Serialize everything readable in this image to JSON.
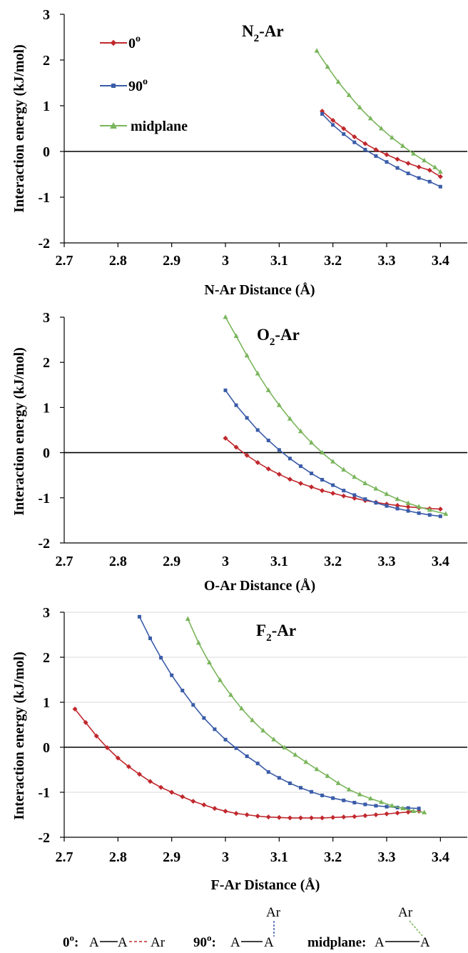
{
  "chart_data": [
    {
      "type": "line",
      "title": "N2-Ar",
      "title_main": "N",
      "title_sub": "2",
      "title_rest": "-Ar",
      "xlabel": "N-Ar Distance (Å)",
      "ylabel": "Interaction energy (kJ/mol)",
      "xlim": [
        2.7,
        3.45
      ],
      "ylim": [
        -2,
        3
      ],
      "xticks": [
        "2.7",
        "2.8",
        "2.9",
        "3",
        "3.1",
        "3.2",
        "3.3",
        "3.4"
      ],
      "yticks": [
        "-2",
        "-1",
        "0",
        "1",
        "2",
        "3"
      ],
      "grid": false,
      "legend": "top-left",
      "series": [
        {
          "name": "0o",
          "color": "#c0282d",
          "marker": "diamond",
          "x": [
            3.18,
            3.2,
            3.22,
            3.24,
            3.26,
            3.28,
            3.3,
            3.32,
            3.34,
            3.36,
            3.38,
            3.4
          ],
          "y": [
            0.88,
            0.68,
            0.5,
            0.32,
            0.17,
            0.04,
            -0.07,
            -0.17,
            -0.26,
            -0.34,
            -0.41,
            -0.55
          ]
        },
        {
          "name": "90o",
          "color": "#3a5ca8",
          "marker": "square",
          "x": [
            3.18,
            3.2,
            3.22,
            3.24,
            3.26,
            3.28,
            3.3,
            3.32,
            3.34,
            3.36,
            3.38,
            3.4
          ],
          "y": [
            0.82,
            0.58,
            0.38,
            0.2,
            0.04,
            -0.1,
            -0.23,
            -0.36,
            -0.48,
            -0.58,
            -0.66,
            -0.77
          ]
        },
        {
          "name": "midplane",
          "color": "#7ab55c",
          "marker": "triangle",
          "x": [
            3.17,
            3.19,
            3.21,
            3.23,
            3.25,
            3.27,
            3.29,
            3.31,
            3.33,
            3.35,
            3.37,
            3.39,
            3.4
          ],
          "y": [
            2.2,
            1.85,
            1.52,
            1.23,
            0.96,
            0.72,
            0.5,
            0.3,
            0.12,
            -0.05,
            -0.2,
            -0.35,
            -0.45
          ]
        }
      ]
    },
    {
      "type": "line",
      "title": "O2-Ar",
      "title_main": "O",
      "title_sub": "2",
      "title_rest": "-Ar",
      "xlabel": "O-Ar Distance (Å)",
      "ylabel": "Interaction energy (kJ/mol)",
      "xlim": [
        2.7,
        3.45
      ],
      "ylim": [
        -2,
        3
      ],
      "xticks": [
        "2.7",
        "2.8",
        "2.9",
        "3",
        "3.1",
        "3.2",
        "3.3",
        "3.4"
      ],
      "yticks": [
        "-2",
        "-1",
        "0",
        "1",
        "2",
        "3"
      ],
      "grid": false,
      "legend": "none",
      "series": [
        {
          "name": "0o",
          "color": "#c0282d",
          "marker": "diamond",
          "x": [
            3.0,
            3.02,
            3.04,
            3.06,
            3.08,
            3.1,
            3.12,
            3.14,
            3.16,
            3.18,
            3.2,
            3.22,
            3.24,
            3.26,
            3.28,
            3.3,
            3.32,
            3.34,
            3.36,
            3.38,
            3.4
          ],
          "y": [
            0.32,
            0.12,
            -0.06,
            -0.22,
            -0.36,
            -0.48,
            -0.59,
            -0.68,
            -0.76,
            -0.84,
            -0.9,
            -0.96,
            -1.01,
            -1.06,
            -1.1,
            -1.14,
            -1.17,
            -1.2,
            -1.22,
            -1.24,
            -1.25
          ]
        },
        {
          "name": "90o",
          "color": "#3a5ca8",
          "marker": "square",
          "x": [
            3.0,
            3.02,
            3.04,
            3.06,
            3.08,
            3.1,
            3.12,
            3.14,
            3.16,
            3.18,
            3.2,
            3.22,
            3.24,
            3.26,
            3.28,
            3.3,
            3.32,
            3.34,
            3.36,
            3.38,
            3.4
          ],
          "y": [
            1.38,
            1.05,
            0.77,
            0.5,
            0.27,
            0.06,
            -0.13,
            -0.3,
            -0.46,
            -0.6,
            -0.72,
            -0.84,
            -0.94,
            -1.03,
            -1.11,
            -1.18,
            -1.24,
            -1.29,
            -1.34,
            -1.38,
            -1.41
          ]
        },
        {
          "name": "midplane",
          "color": "#7ab55c",
          "marker": "triangle",
          "x": [
            3.0,
            3.02,
            3.04,
            3.06,
            3.08,
            3.1,
            3.12,
            3.14,
            3.16,
            3.18,
            3.2,
            3.22,
            3.24,
            3.26,
            3.28,
            3.3,
            3.32,
            3.34,
            3.36,
            3.38,
            3.41
          ],
          "y": [
            3.0,
            2.58,
            2.15,
            1.75,
            1.38,
            1.05,
            0.75,
            0.47,
            0.22,
            0.0,
            -0.2,
            -0.38,
            -0.54,
            -0.68,
            -0.8,
            -0.92,
            -1.03,
            -1.12,
            -1.2,
            -1.27,
            -1.36
          ]
        }
      ]
    },
    {
      "type": "line",
      "title": "F2-Ar",
      "title_main": "F",
      "title_sub": "2",
      "title_rest": "-Ar",
      "xlabel": "F-Ar Distance (Å)",
      "ylabel": "Interaction energy (kJ/mol)",
      "xlim": [
        2.7,
        3.45
      ],
      "ylim": [
        -2,
        3
      ],
      "xticks": [
        "2.7",
        "2.8",
        "2.9",
        "3",
        "3.1",
        "3.2",
        "3.3",
        "3.4"
      ],
      "yticks": [
        "-2",
        "-1",
        "0",
        "1",
        "2",
        "3"
      ],
      "grid": true,
      "legend": "none",
      "series": [
        {
          "name": "0o",
          "color": "#c0282d",
          "marker": "diamond",
          "x": [
            2.72,
            2.74,
            2.76,
            2.78,
            2.8,
            2.82,
            2.84,
            2.86,
            2.88,
            2.9,
            2.92,
            2.94,
            2.96,
            2.98,
            3.0,
            3.02,
            3.04,
            3.06,
            3.08,
            3.1,
            3.12,
            3.14,
            3.16,
            3.18,
            3.2,
            3.22,
            3.24,
            3.26,
            3.28,
            3.3,
            3.32,
            3.34,
            3.36
          ],
          "y": [
            0.85,
            0.55,
            0.25,
            -0.01,
            -0.24,
            -0.43,
            -0.6,
            -0.76,
            -0.89,
            -1.0,
            -1.1,
            -1.2,
            -1.28,
            -1.36,
            -1.42,
            -1.47,
            -1.5,
            -1.53,
            -1.55,
            -1.56,
            -1.57,
            -1.57,
            -1.57,
            -1.57,
            -1.56,
            -1.55,
            -1.54,
            -1.52,
            -1.5,
            -1.48,
            -1.46,
            -1.44,
            -1.42
          ]
        },
        {
          "name": "90o",
          "color": "#3a5ca8",
          "marker": "square",
          "x": [
            2.84,
            2.86,
            2.88,
            2.9,
            2.92,
            2.94,
            2.96,
            2.98,
            3.0,
            3.02,
            3.04,
            3.06,
            3.08,
            3.1,
            3.12,
            3.14,
            3.16,
            3.18,
            3.2,
            3.22,
            3.24,
            3.26,
            3.28,
            3.3,
            3.32,
            3.34,
            3.36
          ],
          "y": [
            2.9,
            2.42,
            1.99,
            1.6,
            1.26,
            0.94,
            0.65,
            0.4,
            0.17,
            -0.02,
            -0.2,
            -0.36,
            -0.55,
            -0.68,
            -0.8,
            -0.9,
            -0.99,
            -1.07,
            -1.13,
            -1.18,
            -1.23,
            -1.27,
            -1.3,
            -1.32,
            -1.34,
            -1.35,
            -1.36
          ]
        },
        {
          "name": "midplane",
          "color": "#7ab55c",
          "marker": "triangle",
          "x": [
            2.93,
            2.95,
            2.97,
            2.99,
            3.01,
            3.03,
            3.05,
            3.07,
            3.09,
            3.11,
            3.13,
            3.15,
            3.17,
            3.19,
            3.21,
            3.23,
            3.25,
            3.27,
            3.29,
            3.31,
            3.33,
            3.35,
            3.37
          ],
          "y": [
            2.85,
            2.32,
            1.88,
            1.49,
            1.16,
            0.86,
            0.6,
            0.37,
            0.17,
            -0.01,
            -0.17,
            -0.33,
            -0.49,
            -0.64,
            -0.8,
            -0.94,
            -1.05,
            -1.14,
            -1.22,
            -1.3,
            -1.36,
            -1.42,
            -1.45
          ]
        }
      ]
    }
  ],
  "legend_labels": {
    "deg0": "0",
    "deg90": "90",
    "midplane": "midplane",
    "sup": "o"
  },
  "diagram": {
    "deg0_label": "0",
    "deg90_label": "90",
    "sup": "o",
    "colon": ":",
    "midplane_label": "midplane:",
    "atom_a": "A",
    "atom_ar": "Ar"
  }
}
